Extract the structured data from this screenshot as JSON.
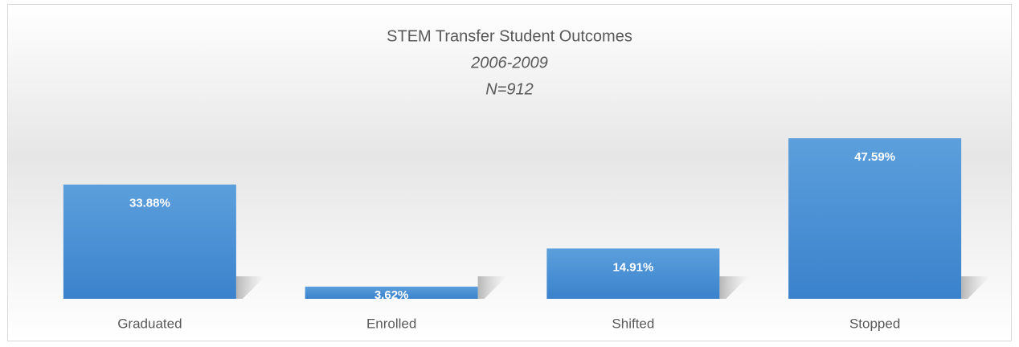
{
  "chart_data": {
    "type": "bar",
    "title": "STEM Transfer Student Outcomes",
    "subtitle": [
      "2006-2009",
      "N=912"
    ],
    "categories": [
      "Graduated",
      "Enrolled",
      "Shifted",
      "Stopped"
    ],
    "values": [
      33.88,
      3.62,
      14.91,
      47.59
    ],
    "value_labels": [
      "33.88%",
      "3.62%",
      "14.91%",
      "47.59%"
    ],
    "color": "#4a90d6"
  }
}
